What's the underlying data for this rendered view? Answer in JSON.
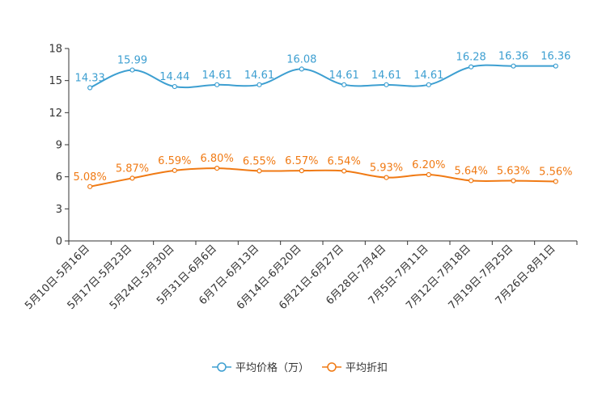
{
  "chart_data": {
    "type": "line",
    "categories": [
      "5月10日-5月16日",
      "5月17日-5月23日",
      "5月24日-5月30日",
      "5月31日-6月6日",
      "6月7日-6月13日",
      "6月14日-6月20日",
      "6月21日-6月27日",
      "6月28日-7月4日",
      "7月5日-7月11日",
      "7月12日-7月18日",
      "7月19日-7月25日",
      "7月26日-8月1日"
    ],
    "series": [
      {
        "name": "平均价格（万）",
        "color": "#3d9fd1",
        "values": [
          14.33,
          15.99,
          14.44,
          14.61,
          14.61,
          16.08,
          14.61,
          14.61,
          14.61,
          16.28,
          16.36,
          16.36
        ],
        "labels": [
          "14.33",
          "15.99",
          "14.44",
          "14.61",
          "14.61",
          "16.08",
          "14.61",
          "14.61",
          "14.61",
          "16.28",
          "16.36",
          "16.36"
        ]
      },
      {
        "name": "平均折扣",
        "color": "#f07a14",
        "values": [
          5.08,
          5.87,
          6.59,
          6.8,
          6.55,
          6.57,
          6.54,
          5.93,
          6.2,
          5.64,
          5.63,
          5.56
        ],
        "labels": [
          "5.08%",
          "5.87%",
          "6.59%",
          "6.80%",
          "6.55%",
          "6.57%",
          "6.54%",
          "5.93%",
          "6.20%",
          "5.64%",
          "5.63%",
          "5.56%"
        ]
      }
    ],
    "yticks": [
      "0",
      "3",
      "6",
      "9",
      "12",
      "15",
      "18"
    ],
    "ylim": [
      0,
      18
    ],
    "legend_position": "bottom-center",
    "title": "",
    "xlabel": "",
    "ylabel": ""
  }
}
